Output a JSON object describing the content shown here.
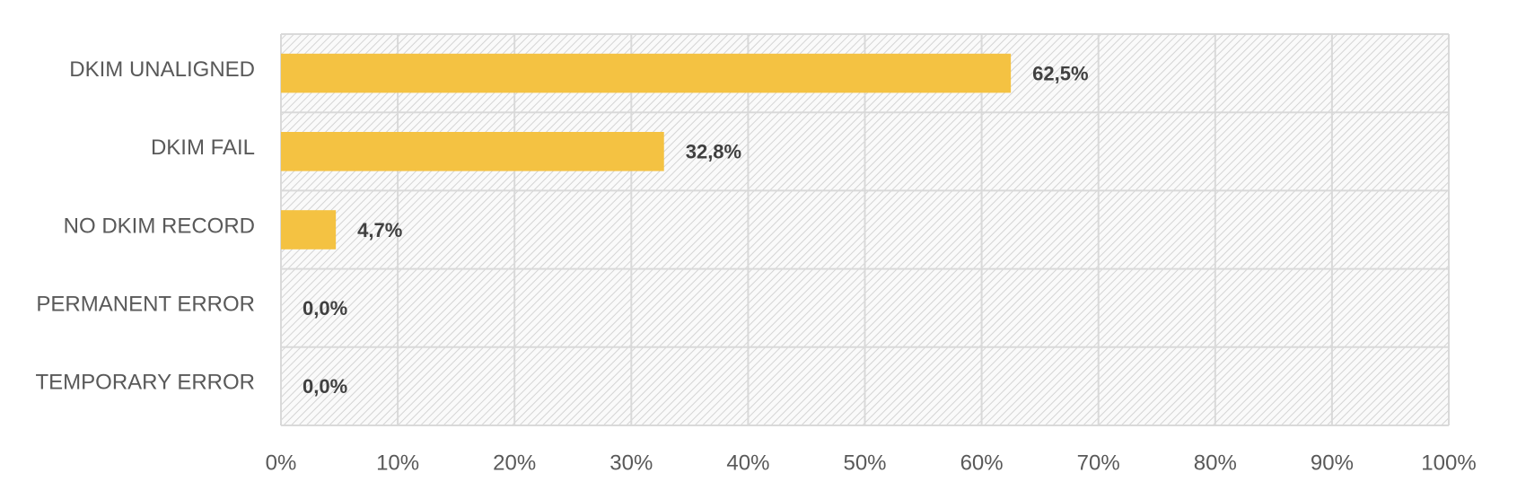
{
  "chart_data": {
    "type": "bar",
    "orientation": "horizontal",
    "categories": [
      "DKIM UNALIGNED",
      "DKIM FAIL",
      "NO DKIM RECORD",
      "PERMANENT ERROR",
      "TEMPORARY ERROR"
    ],
    "values": [
      62.5,
      32.8,
      4.7,
      0,
      0
    ],
    "value_labels": [
      "62,5%",
      "32,8%",
      "4,7%",
      "0,0%",
      "0,0%"
    ],
    "color": "#f4c242",
    "xlim": [
      0,
      100
    ],
    "xticks": [
      {
        "value": 0,
        "label": "0%"
      },
      {
        "value": 10,
        "label": "10%"
      },
      {
        "value": 20,
        "label": "20%"
      },
      {
        "value": 30,
        "label": "30%"
      },
      {
        "value": 40,
        "label": "40%"
      },
      {
        "value": 50,
        "label": "50%"
      },
      {
        "value": 60,
        "label": "60%"
      },
      {
        "value": 70,
        "label": "70%"
      },
      {
        "value": 80,
        "label": "80%"
      },
      {
        "value": 90,
        "label": "90%"
      },
      {
        "value": 100,
        "label": "100%"
      }
    ],
    "grid": true
  }
}
